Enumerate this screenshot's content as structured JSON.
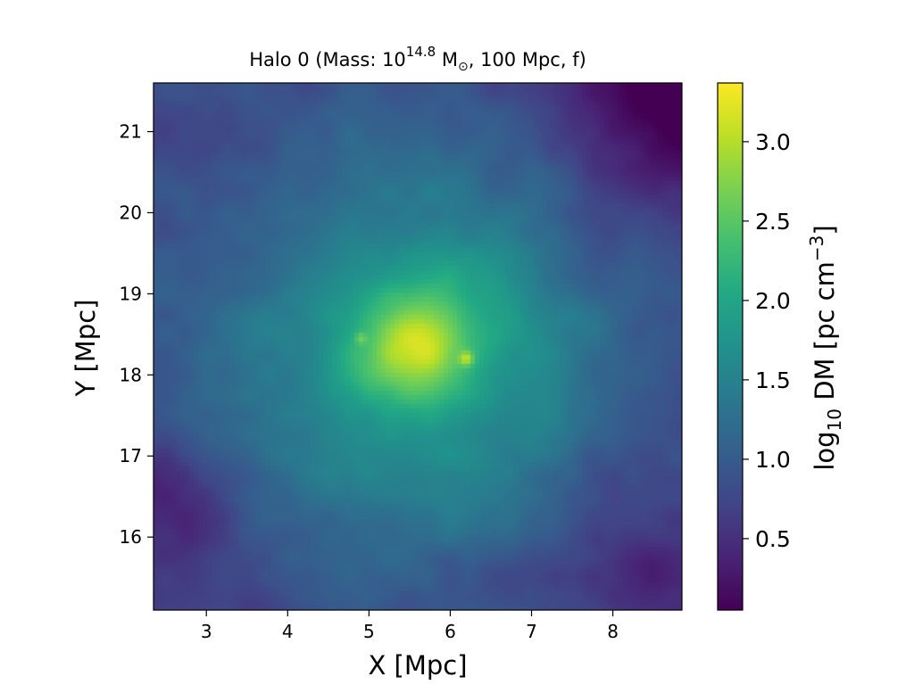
{
  "chart_data": {
    "type": "heatmap",
    "title": {
      "prefix": "Halo 0 (Mass: 10",
      "exponent": "14.8",
      "mid": " M",
      "subscript": "⊙",
      "suffix": ", 100 Mpc, f)"
    },
    "xlabel": "X [Mpc]",
    "ylabel": "Y [Mpc]",
    "xlim": [
      2.35,
      8.85
    ],
    "ylim": [
      15.1,
      21.6
    ],
    "xticks": [
      "3",
      "4",
      "5",
      "6",
      "7",
      "8"
    ],
    "yticks": [
      "16",
      "17",
      "18",
      "19",
      "20",
      "21"
    ],
    "colorbar": {
      "label_prefix": "log",
      "label_sub": "10",
      "label_mid": " DM [pc cm",
      "label_sup": "−3",
      "label_suffix": "]",
      "range": [
        0.05,
        3.37
      ],
      "ticks": [
        "0.5",
        "1.0",
        "1.5",
        "2.0",
        "2.5",
        "3.0"
      ],
      "colormap": "viridis"
    },
    "peak": {
      "x": 5.6,
      "y": 18.35,
      "value": 3.37
    },
    "field_features": [
      {
        "kind": "core",
        "x": 5.6,
        "y": 18.35,
        "amp": 1.15,
        "sigma": 0.45
      },
      {
        "kind": "halo",
        "x": 5.6,
        "y": 18.3,
        "amp": 0.95,
        "sigma": 1.4
      },
      {
        "kind": "envelope",
        "x": 5.4,
        "y": 18.5,
        "amp": 0.55,
        "sigma": 3.2
      },
      {
        "kind": "subhalo",
        "x": 6.2,
        "y": 18.2,
        "amp": 0.75,
        "sigma": 0.06
      },
      {
        "kind": "subhalo",
        "x": 4.9,
        "y": 18.45,
        "amp": 0.45,
        "sigma": 0.05
      },
      {
        "kind": "void",
        "x": 8.7,
        "y": 21.4,
        "amp": -0.9,
        "sigma": 0.9
      },
      {
        "kind": "void",
        "x": 2.5,
        "y": 16.3,
        "amp": -0.5,
        "sigma": 0.6
      },
      {
        "kind": "void",
        "x": 8.4,
        "y": 15.6,
        "amp": -0.35,
        "sigma": 0.8
      }
    ]
  }
}
